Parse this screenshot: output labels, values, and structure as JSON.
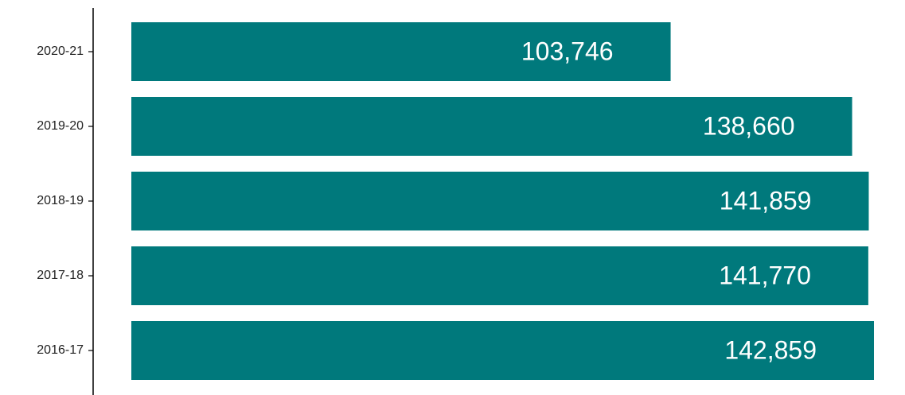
{
  "chart_data": {
    "type": "barh",
    "categories": [
      "2020-21",
      "2019-20",
      "2018-19",
      "2017-18",
      "2016-17"
    ],
    "values": [
      103746,
      138660,
      141859,
      141770,
      142859
    ],
    "value_labels": [
      "103,746",
      "138,660",
      "141,859",
      "141,770",
      "142,859"
    ],
    "color": "#00797c"
  }
}
